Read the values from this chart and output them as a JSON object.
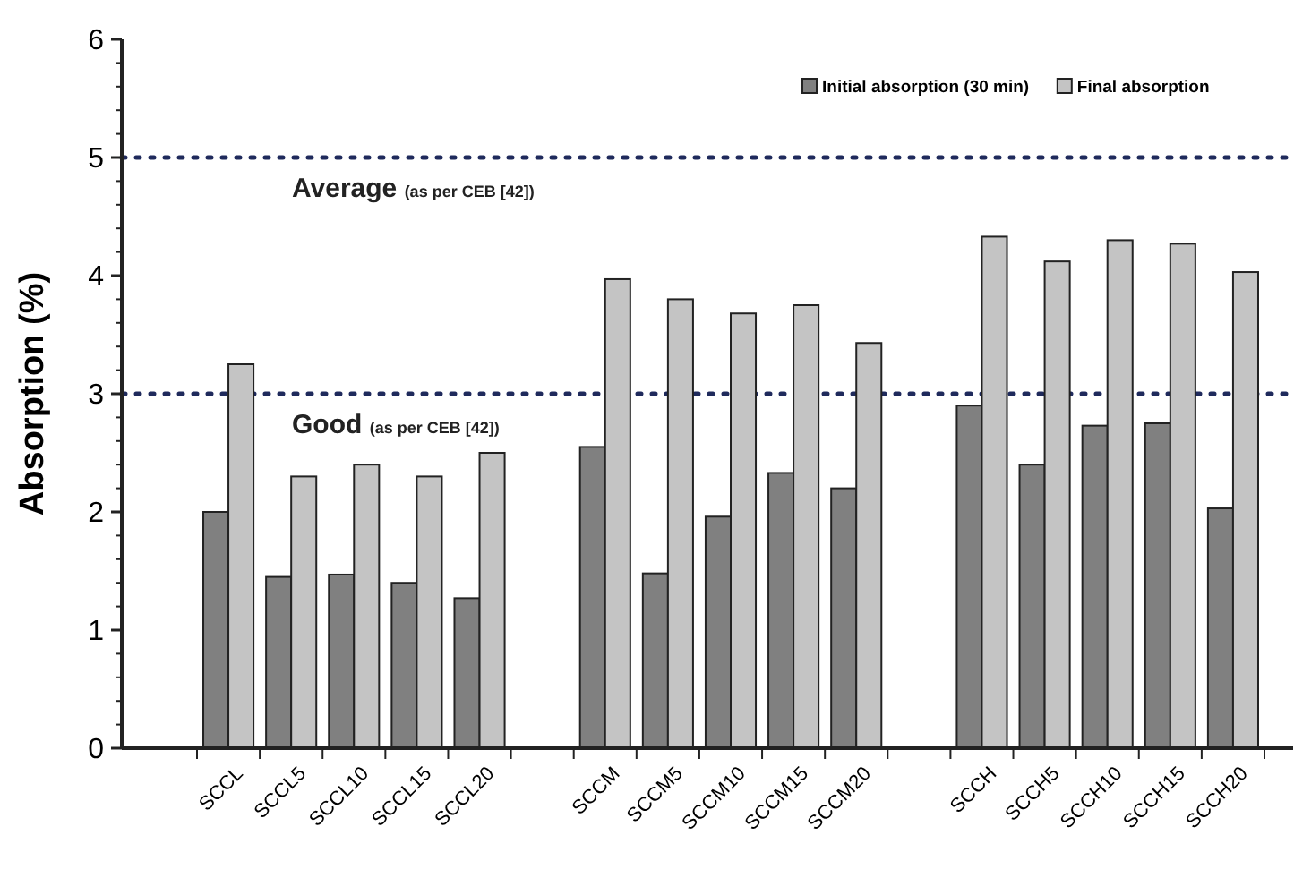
{
  "chart_data": {
    "type": "bar",
    "ylabel": "Absorption (%)",
    "categories": [
      "SCCL",
      "SCCL5",
      "SCCL10",
      "SCCL15",
      "SCCL20",
      null,
      "SCCM",
      "SCCM5",
      "SCCM10",
      "SCCM15",
      "SCCM20",
      null,
      "SCCH",
      "SCCH5",
      "SCCH10",
      "SCCH15",
      "SCCH20"
    ],
    "series": [
      {
        "name": "Initial absorption (30 min)",
        "color": "#808080",
        "values": [
          2.0,
          1.45,
          1.47,
          1.4,
          1.27,
          null,
          2.55,
          1.48,
          1.96,
          2.33,
          2.2,
          null,
          2.9,
          2.4,
          2.73,
          2.75,
          2.03
        ]
      },
      {
        "name": "Final absorption",
        "color": "#c4c4c4",
        "values": [
          3.25,
          2.3,
          2.4,
          2.3,
          2.5,
          null,
          3.97,
          3.8,
          3.68,
          3.75,
          3.43,
          null,
          4.33,
          4.12,
          4.3,
          4.27,
          4.03
        ]
      }
    ],
    "ylim": [
      0,
      6
    ],
    "yticks": [
      0,
      1,
      2,
      3,
      4,
      5,
      6
    ],
    "ref_lines": [
      {
        "axis": "y",
        "value": 5,
        "label": "Average (as per CEB [42])",
        "color": "#1f2a5c",
        "line_style": "dotted"
      },
      {
        "axis": "y",
        "value": 3,
        "label": "Good (as per CEB [42])",
        "color": "#1f2a5c",
        "line_style": "dotted"
      }
    ],
    "grid": false,
    "legend": "top right"
  }
}
